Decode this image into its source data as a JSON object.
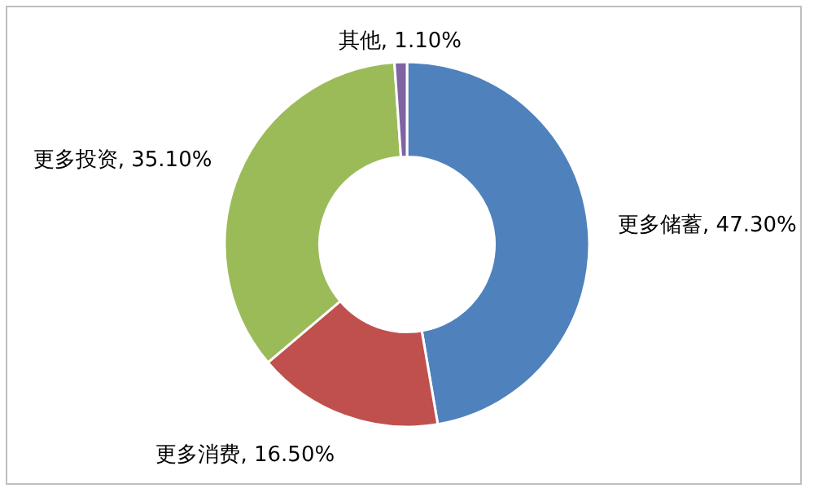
{
  "chart_data": {
    "type": "donut",
    "categories": [
      "更多储蓄",
      "更多消费",
      "更多投资",
      "其他"
    ],
    "values": [
      47.3,
      16.5,
      35.1,
      1.1
    ],
    "value_labels": [
      "47.30%",
      "16.50%",
      "35.10%",
      "1.10%"
    ],
    "colors": [
      "#4f81bd",
      "#c0504d",
      "#9bbb59",
      "#8064a2"
    ],
    "legend": false
  }
}
